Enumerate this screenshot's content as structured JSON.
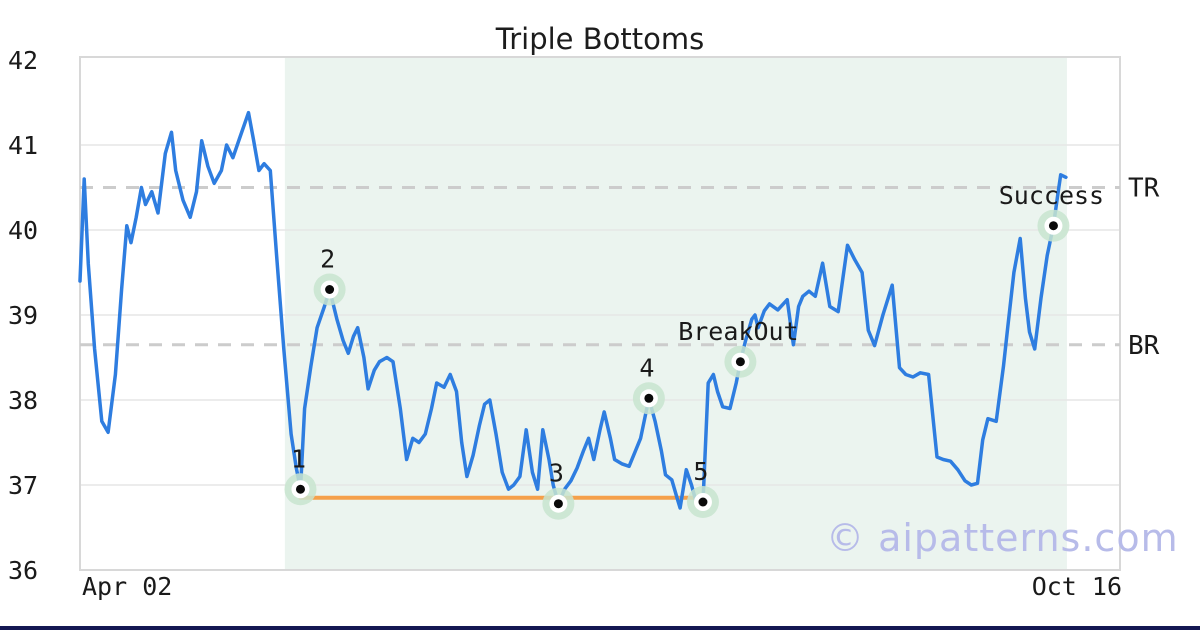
{
  "title": "Triple Bottoms",
  "watermark": "© aipatterns.com",
  "colors": {
    "line": "#2e7de0",
    "pattern_zone": "#ebf4ef",
    "marker_halo": "#c8e4cf",
    "marker_ring": "#ffffff",
    "marker_dot": "#0a0a0a",
    "support_line": "#f5a04a",
    "level_line": "#cccccc",
    "grid": "#e6e6e6",
    "plot_border": "#d8d8d8",
    "tick_text": "#1a1a1a",
    "watermark_color": "#b7bbe9",
    "bottom_bar": "#141852"
  },
  "chart_data": {
    "type": "line",
    "title": "Triple Bottoms",
    "x_axis": {
      "start_label": "Apr 02",
      "end_label": "Oct 16"
    },
    "y_axis": {
      "min": 36,
      "max": 42,
      "ticks": [
        36,
        37,
        38,
        39,
        40,
        41,
        42
      ]
    },
    "legend": "none",
    "grid": "horizontal",
    "pattern_zone": {
      "from_t": 0.197,
      "to_t": 0.949
    },
    "levels": [
      {
        "label": "TR",
        "value": 40.5,
        "style": "dashed"
      },
      {
        "label": "BR",
        "value": 38.65,
        "style": "dashed"
      }
    ],
    "support_line": {
      "value": 36.85,
      "from_t": 0.212,
      "to_t": 0.599
    },
    "annotations": [
      {
        "label": "1",
        "t": 0.212,
        "value": 36.95
      },
      {
        "label": "2",
        "t": 0.24,
        "value": 39.3
      },
      {
        "label": "3",
        "t": 0.46,
        "value": 36.78
      },
      {
        "label": "4",
        "t": 0.547,
        "value": 38.02
      },
      {
        "label": "5",
        "t": 0.599,
        "value": 36.8
      },
      {
        "label": "BreakOut",
        "t": 0.635,
        "value": 38.45
      },
      {
        "label": "Success",
        "t": 0.936,
        "value": 40.05
      }
    ],
    "series": {
      "name": "price",
      "points": [
        [
          0.0,
          39.4
        ],
        [
          0.004,
          40.6
        ],
        [
          0.008,
          39.6
        ],
        [
          0.014,
          38.6
        ],
        [
          0.021,
          37.75
        ],
        [
          0.027,
          37.62
        ],
        [
          0.034,
          38.3
        ],
        [
          0.04,
          39.3
        ],
        [
          0.045,
          40.05
        ],
        [
          0.049,
          39.85
        ],
        [
          0.054,
          40.15
        ],
        [
          0.059,
          40.5
        ],
        [
          0.063,
          40.3
        ],
        [
          0.069,
          40.45
        ],
        [
          0.075,
          40.2
        ],
        [
          0.082,
          40.9
        ],
        [
          0.088,
          41.15
        ],
        [
          0.092,
          40.7
        ],
        [
          0.099,
          40.35
        ],
        [
          0.106,
          40.15
        ],
        [
          0.112,
          40.45
        ],
        [
          0.117,
          41.05
        ],
        [
          0.123,
          40.75
        ],
        [
          0.129,
          40.55
        ],
        [
          0.136,
          40.7
        ],
        [
          0.141,
          41.0
        ],
        [
          0.147,
          40.85
        ],
        [
          0.154,
          41.1
        ],
        [
          0.162,
          41.38
        ],
        [
          0.167,
          41.05
        ],
        [
          0.172,
          40.7
        ],
        [
          0.177,
          40.78
        ],
        [
          0.183,
          40.7
        ],
        [
          0.189,
          39.7
        ],
        [
          0.196,
          38.6
        ],
        [
          0.203,
          37.6
        ],
        [
          0.208,
          37.2
        ],
        [
          0.212,
          36.95
        ],
        [
          0.216,
          37.9
        ],
        [
          0.222,
          38.4
        ],
        [
          0.228,
          38.85
        ],
        [
          0.235,
          39.1
        ],
        [
          0.24,
          39.3
        ],
        [
          0.247,
          38.95
        ],
        [
          0.253,
          38.7
        ],
        [
          0.258,
          38.55
        ],
        [
          0.263,
          38.75
        ],
        [
          0.267,
          38.85
        ],
        [
          0.273,
          38.5
        ],
        [
          0.277,
          38.13
        ],
        [
          0.283,
          38.35
        ],
        [
          0.288,
          38.45
        ],
        [
          0.295,
          38.5
        ],
        [
          0.301,
          38.45
        ],
        [
          0.308,
          37.9
        ],
        [
          0.314,
          37.3
        ],
        [
          0.32,
          37.55
        ],
        [
          0.326,
          37.5
        ],
        [
          0.332,
          37.6
        ],
        [
          0.338,
          37.9
        ],
        [
          0.343,
          38.2
        ],
        [
          0.35,
          38.15
        ],
        [
          0.356,
          38.3
        ],
        [
          0.362,
          38.1
        ],
        [
          0.367,
          37.5
        ],
        [
          0.372,
          37.1
        ],
        [
          0.378,
          37.35
        ],
        [
          0.384,
          37.7
        ],
        [
          0.389,
          37.95
        ],
        [
          0.394,
          38.0
        ],
        [
          0.4,
          37.6
        ],
        [
          0.406,
          37.15
        ],
        [
          0.412,
          36.95
        ],
        [
          0.417,
          37.0
        ],
        [
          0.423,
          37.1
        ],
        [
          0.429,
          37.65
        ],
        [
          0.435,
          37.15
        ],
        [
          0.44,
          36.95
        ],
        [
          0.445,
          37.65
        ],
        [
          0.451,
          37.3
        ],
        [
          0.455,
          37.0
        ],
        [
          0.46,
          36.78
        ],
        [
          0.466,
          36.95
        ],
        [
          0.472,
          37.05
        ],
        [
          0.478,
          37.2
        ],
        [
          0.484,
          37.4
        ],
        [
          0.489,
          37.55
        ],
        [
          0.494,
          37.3
        ],
        [
          0.5,
          37.65
        ],
        [
          0.504,
          37.86
        ],
        [
          0.51,
          37.55
        ],
        [
          0.514,
          37.3
        ],
        [
          0.521,
          37.25
        ],
        [
          0.528,
          37.22
        ],
        [
          0.534,
          37.4
        ],
        [
          0.539,
          37.55
        ],
        [
          0.547,
          38.02
        ],
        [
          0.553,
          37.75
        ],
        [
          0.559,
          37.4
        ],
        [
          0.563,
          37.12
        ],
        [
          0.569,
          37.06
        ],
        [
          0.574,
          36.85
        ],
        [
          0.577,
          36.73
        ],
        [
          0.583,
          37.18
        ],
        [
          0.588,
          37.0
        ],
        [
          0.592,
          36.82
        ],
        [
          0.599,
          36.8
        ],
        [
          0.604,
          38.2
        ],
        [
          0.609,
          38.3
        ],
        [
          0.613,
          38.1
        ],
        [
          0.618,
          37.92
        ],
        [
          0.625,
          37.9
        ],
        [
          0.631,
          38.2
        ],
        [
          0.635,
          38.45
        ],
        [
          0.64,
          38.7
        ],
        [
          0.646,
          38.95
        ],
        [
          0.649,
          39.0
        ],
        [
          0.652,
          38.85
        ],
        [
          0.658,
          39.05
        ],
        [
          0.663,
          39.13
        ],
        [
          0.671,
          39.06
        ],
        [
          0.68,
          39.18
        ],
        [
          0.686,
          38.65
        ],
        [
          0.691,
          39.1
        ],
        [
          0.695,
          39.22
        ],
        [
          0.701,
          39.28
        ],
        [
          0.707,
          39.22
        ],
        [
          0.714,
          39.61
        ],
        [
          0.721,
          39.1
        ],
        [
          0.729,
          39.04
        ],
        [
          0.738,
          39.82
        ],
        [
          0.745,
          39.65
        ],
        [
          0.752,
          39.5
        ],
        [
          0.758,
          38.82
        ],
        [
          0.764,
          38.64
        ],
        [
          0.772,
          39.0
        ],
        [
          0.781,
          39.35
        ],
        [
          0.788,
          38.38
        ],
        [
          0.794,
          38.3
        ],
        [
          0.801,
          38.27
        ],
        [
          0.808,
          38.32
        ],
        [
          0.816,
          38.3
        ],
        [
          0.824,
          37.33
        ],
        [
          0.83,
          37.3
        ],
        [
          0.837,
          37.28
        ],
        [
          0.844,
          37.18
        ],
        [
          0.851,
          37.05
        ],
        [
          0.857,
          37.0
        ],
        [
          0.863,
          37.02
        ],
        [
          0.868,
          37.53
        ],
        [
          0.873,
          37.78
        ],
        [
          0.881,
          37.75
        ],
        [
          0.888,
          38.4
        ],
        [
          0.892,
          38.85
        ],
        [
          0.898,
          39.5
        ],
        [
          0.904,
          39.9
        ],
        [
          0.909,
          39.2
        ],
        [
          0.913,
          38.8
        ],
        [
          0.918,
          38.6
        ],
        [
          0.924,
          39.2
        ],
        [
          0.93,
          39.7
        ],
        [
          0.936,
          40.05
        ],
        [
          0.94,
          40.4
        ],
        [
          0.943,
          40.65
        ],
        [
          0.948,
          40.62
        ]
      ]
    }
  }
}
